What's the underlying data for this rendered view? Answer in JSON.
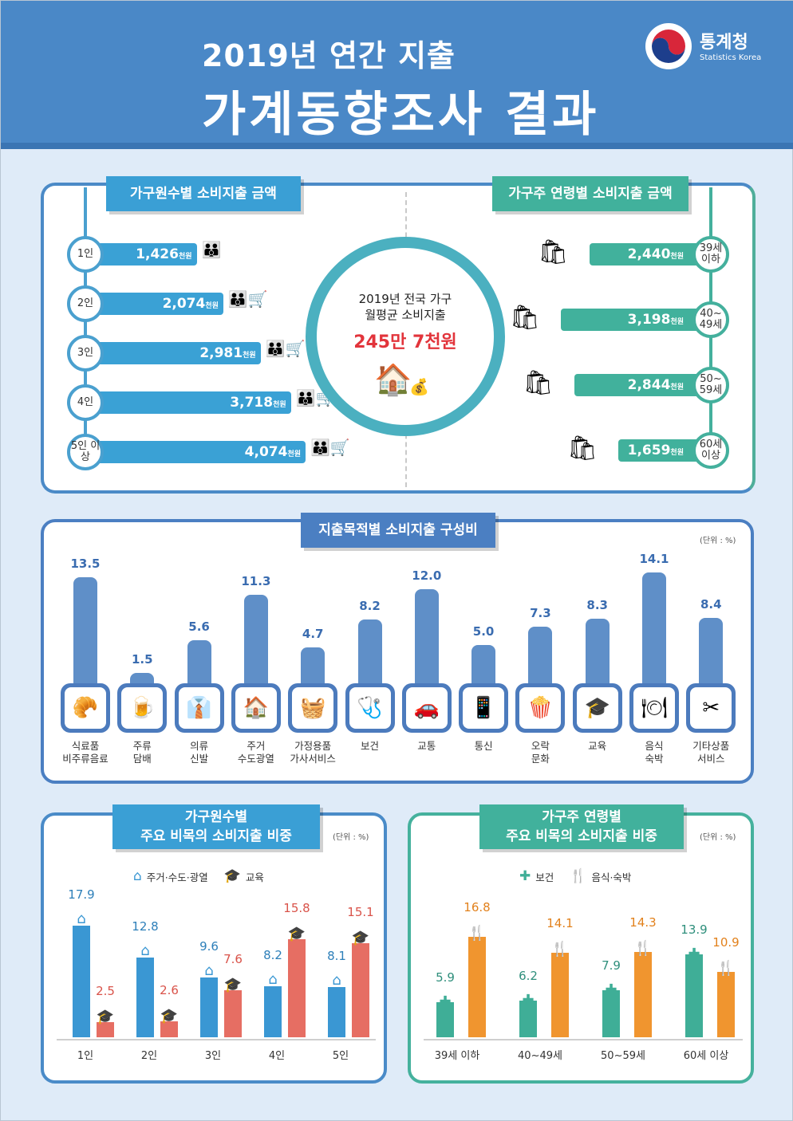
{
  "header": {
    "title_line1": "2019년 연간 지출",
    "title_line2": "가계동향조사 결과",
    "logo_name": "통계청",
    "logo_sub": "Statistics Korea"
  },
  "panel1": {
    "left_tab": "가구원수별 소비지출 금액",
    "right_tab": "가구주 연령별 소비지출 금액",
    "center_line1": "2019년 전국 가구",
    "center_line2": "월평균 소비지출",
    "center_value": "245만 7천원",
    "unit_suffix": "천원",
    "household": [
      {
        "label": "1인",
        "amount": "1,426"
      },
      {
        "label": "2인",
        "amount": "2,074"
      },
      {
        "label": "3인",
        "amount": "2,981"
      },
      {
        "label": "4인",
        "amount": "3,718"
      },
      {
        "label": "5인 이상",
        "amount": "4,074"
      }
    ],
    "age": [
      {
        "label": "39세 이하",
        "amount": "2,440"
      },
      {
        "label": "40~ 49세",
        "amount": "3,198"
      },
      {
        "label": "50~ 59세",
        "amount": "2,844"
      },
      {
        "label": "60세 이상",
        "amount": "1,659"
      }
    ]
  },
  "panel2": {
    "tab": "지출목적별 소비지출 구성비",
    "unit": "(단위 : %)"
  },
  "panel3": {
    "tab_line1": "가구원수별",
    "tab_line2": "주요 비목의 소비지출 비중",
    "unit": "(단위 : %)",
    "legend1": "주거·수도·광열",
    "legend2": "교육"
  },
  "panel4": {
    "tab_line1": "가구주 연령별",
    "tab_line2": "주요 비목의 소비지출 비중",
    "unit": "(단위 : %)",
    "legend1": "보건",
    "legend2": "음식·숙박"
  },
  "chart_data": [
    {
      "type": "bar",
      "title": "가구원수별 소비지출 금액",
      "unit": "천원",
      "categories": [
        "1인",
        "2인",
        "3인",
        "4인",
        "5인 이상"
      ],
      "values": [
        1426,
        2074,
        2981,
        3718,
        4074
      ]
    },
    {
      "type": "bar",
      "title": "가구주 연령별 소비지출 금액",
      "unit": "천원",
      "categories": [
        "39세 이하",
        "40~49세",
        "50~59세",
        "60세 이상"
      ],
      "values": [
        2440,
        3198,
        2844,
        1659
      ]
    },
    {
      "type": "bar",
      "title": "지출목적별 소비지출 구성비",
      "unit": "%",
      "categories": [
        "식료품 비주류음료",
        "주류 담배",
        "의류 신발",
        "주거 수도광열",
        "가정용품 가사서비스",
        "보건",
        "교통",
        "통신",
        "오락 문화",
        "교육",
        "음식 숙박",
        "기타상품 서비스"
      ],
      "values": [
        13.5,
        1.5,
        5.6,
        11.3,
        4.7,
        8.2,
        12.0,
        5.0,
        7.3,
        8.3,
        14.1,
        8.4
      ],
      "value_labels": [
        "13.5",
        "1.5",
        "5.6",
        "11.3",
        "4.7",
        "8.2",
        "12.0",
        "5.0",
        "7.3",
        "8.3",
        "14.1",
        "8.4"
      ],
      "icons": [
        "food-icon",
        "drink-icon",
        "clothing-icon",
        "house-icon",
        "washing-machine-icon",
        "first-aid-icon",
        "car-icon",
        "phone-icon",
        "popcorn-icon",
        "graduation-icon",
        "dining-icon",
        "misc-services-icon"
      ],
      "icon_glyphs": [
        "🥐",
        "🍺",
        "👔",
        "🏠",
        "🧺",
        "🩺",
        "🚗",
        "📱",
        "🍿",
        "🎓",
        "🍽",
        "✂"
      ]
    },
    {
      "type": "bar",
      "title": "가구원수별 주요 비목의 소비지출 비중",
      "unit": "%",
      "categories": [
        "1인",
        "2인",
        "3인",
        "4인",
        "5인"
      ],
      "series": [
        {
          "name": "주거·수도·광열",
          "values": [
            17.9,
            12.8,
            9.6,
            8.2,
            8.1
          ],
          "labels": [
            "17.9",
            "12.8",
            "9.6",
            "8.2",
            "8.1"
          ],
          "color": "#3a97d3"
        },
        {
          "name": "교육",
          "values": [
            2.5,
            2.6,
            7.6,
            15.8,
            15.1
          ],
          "labels": [
            "2.5",
            "2.6",
            "7.6",
            "15.8",
            "15.1"
          ],
          "color": "#e66e63"
        }
      ]
    },
    {
      "type": "bar",
      "title": "가구주 연령별 주요 비목의 소비지출 비중",
      "unit": "%",
      "categories": [
        "39세 이하",
        "40~49세",
        "50~59세",
        "60세 이상"
      ],
      "series": [
        {
          "name": "보건",
          "values": [
            5.9,
            6.2,
            7.9,
            13.9
          ],
          "labels": [
            "5.9",
            "6.2",
            "7.9",
            "13.9"
          ],
          "color": "#3fae97"
        },
        {
          "name": "음식·숙박",
          "values": [
            16.8,
            14.1,
            14.3,
            10.9
          ],
          "labels": [
            "16.8",
            "14.1",
            "14.3",
            "10.9"
          ],
          "color": "#f0952f"
        }
      ]
    }
  ]
}
